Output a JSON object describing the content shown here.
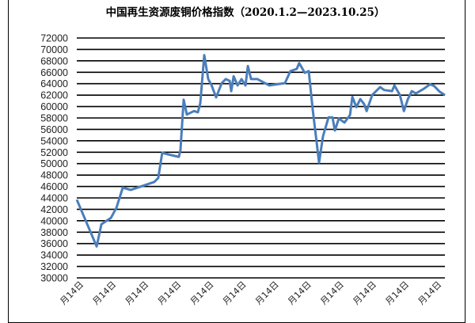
{
  "chart_data": {
    "type": "line",
    "title": "中国再生资源废铜价格指数（2020.1.2—2023.10.25）",
    "xlabel": "",
    "ylabel": "",
    "ylim": [
      30000,
      72000
    ],
    "ytick_step": 2000,
    "yticks": [
      "30000",
      "32000",
      "34000",
      "36000",
      "38000",
      "40000",
      "42000",
      "44000",
      "46000",
      "48000",
      "50000",
      "52000",
      "54000",
      "56000",
      "58000",
      "60000",
      "62000",
      "64000",
      "66000",
      "68000",
      "70000",
      "72000"
    ],
    "xticks": [
      "月14日",
      "月14日",
      "月14日",
      "月14日",
      "月14日",
      "月14日",
      "月14日",
      "月14日",
      "月14日",
      "月14日",
      "月14日",
      "月14日"
    ],
    "xlim": [
      "2020-01-02",
      "2023-10-25"
    ],
    "grid": "horizontal",
    "legend": "none",
    "line_color": "#4a7ebb",
    "grid_color": "#000000",
    "series": [
      {
        "points": [
          [
            "2020-01-02",
            43700
          ],
          [
            "2020-03-17",
            35500
          ],
          [
            "2020-04-04",
            39400
          ],
          [
            "2020-05-10",
            40500
          ],
          [
            "2020-05-31",
            42300
          ],
          [
            "2020-06-24",
            45800
          ],
          [
            "2020-07-24",
            45400
          ],
          [
            "2020-09-07",
            46100
          ],
          [
            "2020-10-21",
            46800
          ],
          [
            "2020-11-05",
            47500
          ],
          [
            "2020-11-20",
            51900
          ],
          [
            "2020-12-14",
            51600
          ],
          [
            "2021-01-22",
            51200
          ],
          [
            "2021-01-28",
            52300
          ],
          [
            "2021-02-09",
            61200
          ],
          [
            "2021-02-21",
            58600
          ],
          [
            "2021-03-20",
            59200
          ],
          [
            "2021-04-04",
            59000
          ],
          [
            "2021-04-13",
            60600
          ],
          [
            "2021-04-28",
            69000
          ],
          [
            "2021-05-13",
            64800
          ],
          [
            "2021-05-25",
            63800
          ],
          [
            "2021-06-12",
            61600
          ],
          [
            "2021-07-03",
            64100
          ],
          [
            "2021-07-18",
            64800
          ],
          [
            "2021-08-02",
            64500
          ],
          [
            "2021-08-08",
            62700
          ],
          [
            "2021-08-17",
            65300
          ],
          [
            "2021-09-01",
            63700
          ],
          [
            "2021-09-16",
            64800
          ],
          [
            "2021-10-01",
            63700
          ],
          [
            "2021-10-10",
            67100
          ],
          [
            "2021-10-22",
            64800
          ],
          [
            "2021-11-15",
            64800
          ],
          [
            "2021-12-30",
            63700
          ],
          [
            "2022-02-27",
            64100
          ],
          [
            "2022-03-20",
            66200
          ],
          [
            "2022-04-13",
            66600
          ],
          [
            "2022-04-22",
            67600
          ],
          [
            "2022-05-13",
            65900
          ],
          [
            "2022-05-28",
            66200
          ],
          [
            "2022-06-12",
            59500
          ],
          [
            "2022-06-27",
            53700
          ],
          [
            "2022-07-06",
            50200
          ],
          [
            "2022-07-21",
            54800
          ],
          [
            "2022-08-11",
            58100
          ],
          [
            "2022-08-26",
            58100
          ],
          [
            "2022-09-04",
            55800
          ],
          [
            "2022-09-19",
            57900
          ],
          [
            "2022-10-10",
            57200
          ],
          [
            "2022-10-31",
            58500
          ],
          [
            "2022-11-09",
            61700
          ],
          [
            "2022-11-24",
            59900
          ],
          [
            "2022-12-09",
            61300
          ],
          [
            "2022-12-24",
            60400
          ],
          [
            "2023-01-02",
            59200
          ],
          [
            "2023-01-23",
            62000
          ],
          [
            "2023-02-07",
            62700
          ],
          [
            "2023-02-22",
            63400
          ],
          [
            "2023-03-09",
            62900
          ],
          [
            "2023-04-08",
            62700
          ],
          [
            "2023-04-17",
            63700
          ],
          [
            "2023-05-08",
            62000
          ],
          [
            "2023-05-23",
            59200
          ],
          [
            "2023-06-07",
            61300
          ],
          [
            "2023-06-22",
            62700
          ],
          [
            "2023-07-07",
            62300
          ],
          [
            "2023-08-06",
            63100
          ],
          [
            "2023-08-30",
            63900
          ],
          [
            "2023-09-14",
            63600
          ],
          [
            "2023-10-05",
            62600
          ],
          [
            "2023-10-25",
            62000
          ]
        ]
      }
    ]
  }
}
